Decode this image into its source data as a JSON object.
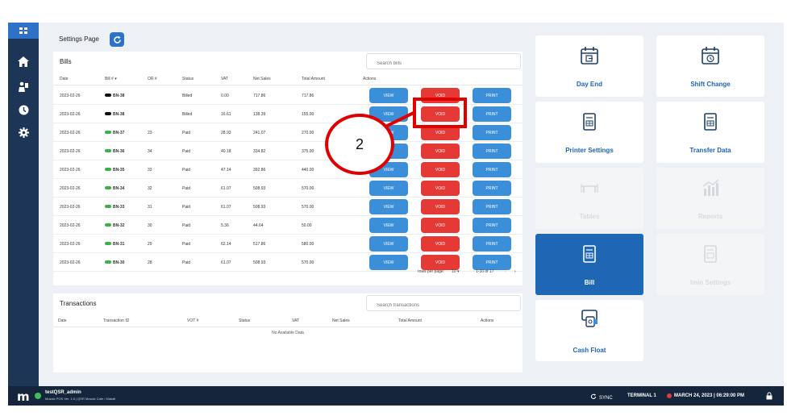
{
  "header": {
    "title": "Settings Page"
  },
  "bills": {
    "title": "Bills",
    "search_placeholder": "Search bills",
    "columns": [
      "Date",
      "Bill # ▾",
      "OR #",
      "Status",
      "VAT",
      "Net Sales",
      "Total Amount",
      "Actions"
    ],
    "rows": [
      {
        "date": "2023-02-26",
        "bill": "BN-38",
        "cloud": "black",
        "or": "",
        "status": "Billed",
        "vat": "0.00",
        "net": "717.86",
        "total": "717.86"
      },
      {
        "date": "2023-02-26",
        "bill": "BN-38",
        "cloud": "black",
        "or": "",
        "status": "Billed",
        "vat": "16.61",
        "net": "138.39",
        "total": "155.00"
      },
      {
        "date": "2023-02-26",
        "bill": "BN-37",
        "cloud": "green",
        "or": "23",
        "status": "Paid",
        "vat": "28.93",
        "net": "241.07",
        "total": "270.00"
      },
      {
        "date": "2023-02-26",
        "bill": "BN-36",
        "cloud": "green",
        "or": "34",
        "status": "Paid",
        "vat": "40.18",
        "net": "334.82",
        "total": "375.00"
      },
      {
        "date": "2023-02-26",
        "bill": "BN-35",
        "cloud": "green",
        "or": "33",
        "status": "Paid",
        "vat": "47.14",
        "net": "392.86",
        "total": "440.00"
      },
      {
        "date": "2023-02-26",
        "bill": "BN-34",
        "cloud": "green",
        "or": "32",
        "status": "Paid",
        "vat": "61.07",
        "net": "508.93",
        "total": "570.00"
      },
      {
        "date": "2023-02-26",
        "bill": "BN-33",
        "cloud": "green",
        "or": "31",
        "status": "Paid",
        "vat": "61.07",
        "net": "508.93",
        "total": "570.00"
      },
      {
        "date": "2023-02-26",
        "bill": "BN-32",
        "cloud": "green",
        "or": "30",
        "status": "Paid",
        "vat": "5.36",
        "net": "44.64",
        "total": "50.00"
      },
      {
        "date": "2023-02-26",
        "bill": "BN-31",
        "cloud": "green",
        "or": "29",
        "status": "Paid",
        "vat": "62.14",
        "net": "517.86",
        "total": "580.00"
      },
      {
        "date": "2023-02-26",
        "bill": "BN-30",
        "cloud": "green",
        "or": "28",
        "status": "Paid",
        "vat": "61.07",
        "net": "508.93",
        "total": "570.00"
      }
    ],
    "action_labels": {
      "view": "VIEW",
      "void": "VOID",
      "print": "PRINT"
    },
    "pagination": {
      "rows_label": "rows per page:",
      "rows_value": "10",
      "range": "1-10 of 17"
    }
  },
  "transactions": {
    "title": "Transactions",
    "search_placeholder": "Search transactions",
    "columns": [
      "Date",
      "Transaction ID",
      "VOT #",
      "Status",
      "VAT",
      "Net Sales",
      "Total Amount",
      "Actions"
    ],
    "empty_text": "No Available Data"
  },
  "tiles": [
    {
      "label": "Day End",
      "icon": "calendar-in-icon",
      "state": "normal"
    },
    {
      "label": "Shift Change",
      "icon": "calendar-clock-icon",
      "state": "normal"
    },
    {
      "label": "Printer Settings",
      "icon": "printer-doc-icon",
      "state": "normal"
    },
    {
      "label": "Transfer Data",
      "icon": "transfer-doc-icon",
      "state": "normal"
    },
    {
      "label": "Tables",
      "icon": "tables-icon",
      "state": "disabled"
    },
    {
      "label": "Reports",
      "icon": "bar-chart-icon",
      "state": "disabled"
    },
    {
      "label": "Bill",
      "icon": "bill-doc-icon",
      "state": "active"
    },
    {
      "label": "Imin Settings",
      "icon": "imin-doc-icon",
      "state": "disabled"
    },
    {
      "label": "Cash Float",
      "icon": "cash-float-icon",
      "state": "normal"
    }
  ],
  "footer": {
    "user": "testQSR_admin",
    "sub": "Mosaic POS Ver. 1.5 | QSR Mosaic Cafe / Makati",
    "sync": "SYNC",
    "terminal": "TERMINAL 1",
    "datetime": "MARCH 24, 2023 | 06:29:00 PM"
  },
  "annotation": {
    "label": "2"
  },
  "colors": {
    "primary": "#2d72c6",
    "void": "#e53935",
    "nav": "#1d3557",
    "footer": "#14253c",
    "annotation": "#e00000"
  }
}
